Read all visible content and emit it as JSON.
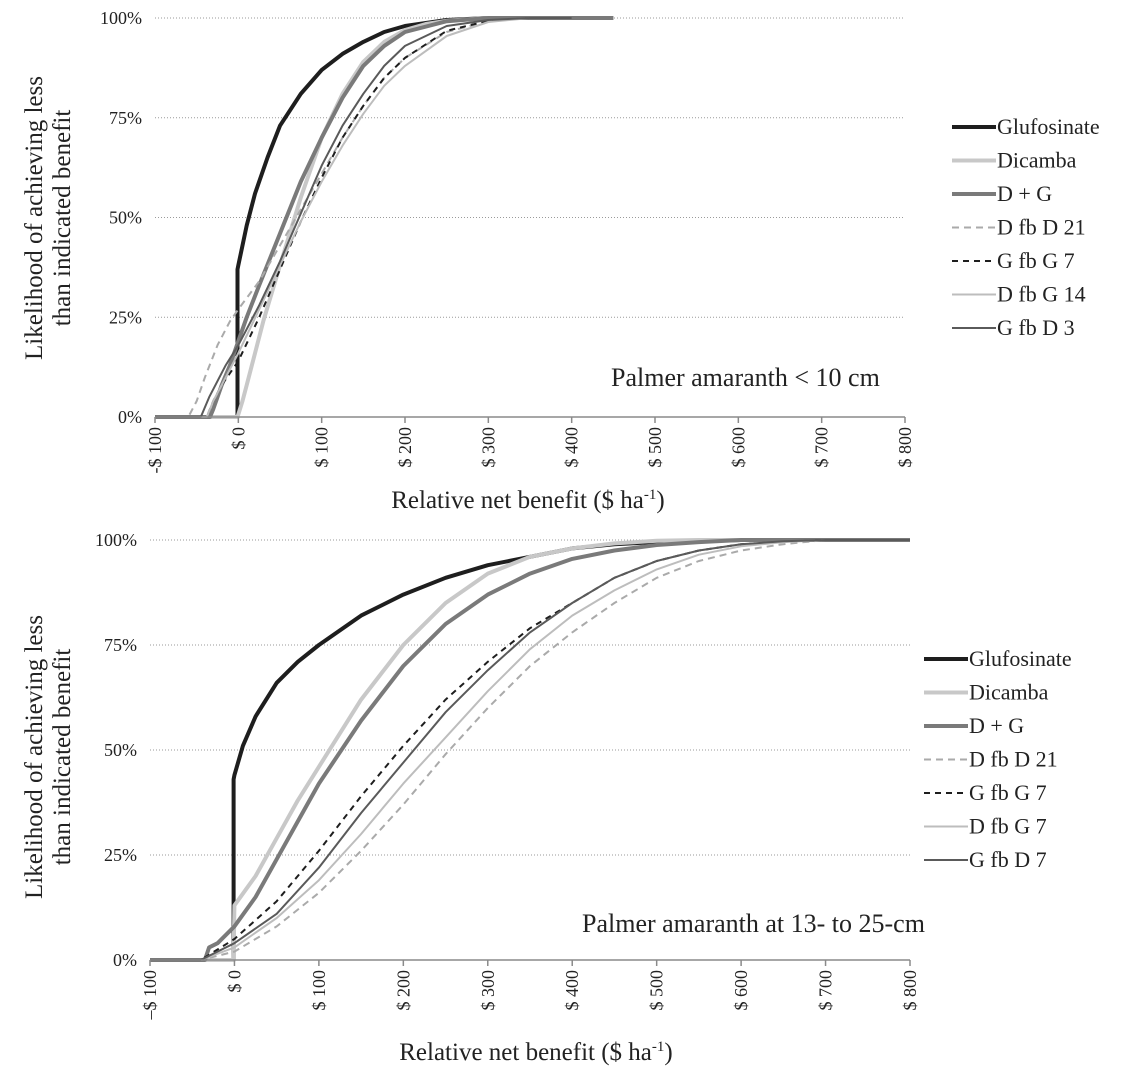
{
  "chart_data": [
    {
      "type": "line",
      "xlabel": "Relative net benefit ($ ha",
      "xlabel_sup": "-1",
      "xlabel_end": ")",
      "ylabel_line1": "Likelihood of achieving less",
      "ylabel_line2": "than indicated benefit",
      "xlim": [
        -100,
        800
      ],
      "ylim": [
        0,
        100
      ],
      "xtick_values": [
        -100,
        0,
        100,
        200,
        300,
        400,
        500,
        600,
        700,
        800
      ],
      "xtick_labels": [
        "-$ 100",
        "$ 0",
        "$ 100",
        "$ 200",
        "$ 300",
        "$ 400",
        "$ 500",
        "$ 600",
        "$ 700",
        "$ 800"
      ],
      "ytick_values": [
        0,
        25,
        50,
        75,
        100
      ],
      "ytick_labels": [
        "0%",
        "25%",
        "50%",
        "75%",
        "100%"
      ],
      "grid": "horizontal dotted",
      "legend_position": "right",
      "annotation": "Palmer amaranth < 10 cm",
      "series": [
        {
          "name": "Glufosinate",
          "color": "#1e1e1e",
          "width": 4,
          "dash": "",
          "x": [
            -100,
            -1,
            -1,
            0,
            10,
            20,
            35,
            50,
            75,
            100,
            125,
            150,
            175,
            200,
            250,
            300,
            350,
            400,
            450
          ],
          "y": [
            0,
            0,
            37,
            38,
            48,
            56,
            65,
            73,
            81,
            87,
            91,
            94,
            96.5,
            98,
            99.5,
            100,
            100,
            100,
            100
          ]
        },
        {
          "name": "Dicamba",
          "color": "#c8c8c8",
          "width": 4,
          "dash": "",
          "x": [
            -100,
            -1,
            5,
            10,
            20,
            30,
            50,
            75,
            100,
            125,
            150,
            175,
            200,
            225,
            250,
            300,
            350,
            400,
            450
          ],
          "y": [
            0,
            0,
            4,
            8,
            16,
            24,
            38,
            55,
            70,
            81,
            89,
            94,
            97,
            98.5,
            99.3,
            100,
            100,
            100,
            100
          ]
        },
        {
          "name": "D + G",
          "color": "#7a7a7a",
          "width": 4,
          "dash": "",
          "x": [
            -100,
            -34,
            -30,
            -20,
            -10,
            0,
            10,
            25,
            50,
            75,
            100,
            125,
            150,
            175,
            200,
            250,
            300,
            350,
            400,
            450
          ],
          "y": [
            0,
            0,
            2,
            8,
            13,
            19,
            25,
            33,
            46,
            59,
            70,
            80,
            88,
            93,
            96.5,
            99.2,
            100,
            100,
            100,
            100
          ]
        },
        {
          "name": "D fb D 21",
          "color": "#aaaaaa",
          "width": 2,
          "dash": "7,5",
          "x": [
            -100,
            -60,
            -50,
            -40,
            -25,
            -10,
            0,
            25,
            50,
            75,
            100,
            125,
            150,
            175,
            200,
            250,
            300,
            350,
            400
          ],
          "y": [
            0,
            0,
            4,
            10,
            18,
            24,
            27,
            34,
            43,
            52,
            61,
            70,
            78,
            85,
            90,
            96.5,
            99.2,
            100,
            100
          ]
        },
        {
          "name": "G fb G 7",
          "color": "#1e1e1e",
          "width": 2,
          "dash": "6,5",
          "x": [
            -100,
            -38,
            -30,
            -20,
            -10,
            0,
            25,
            50,
            75,
            100,
            125,
            150,
            175,
            200,
            250,
            300,
            350,
            400
          ],
          "y": [
            0,
            0,
            4,
            8,
            11,
            14,
            25,
            37,
            49,
            60,
            70,
            78,
            85,
            90,
            96.8,
            99.3,
            100,
            100
          ]
        },
        {
          "name": "D fb G 14",
          "color": "#bdbdbd",
          "width": 2,
          "dash": "",
          "x": [
            -100,
            -38,
            -30,
            -20,
            -10,
            0,
            25,
            50,
            75,
            100,
            125,
            150,
            175,
            200,
            250,
            300,
            350,
            400
          ],
          "y": [
            0,
            0,
            4,
            8,
            12,
            16,
            27,
            38,
            49,
            59,
            68,
            76,
            83,
            88,
            95.5,
            99,
            100,
            100
          ]
        },
        {
          "name": "G fb D 3",
          "color": "#5a5a5a",
          "width": 2,
          "dash": "",
          "x": [
            -100,
            -45,
            -35,
            -25,
            -15,
            0,
            25,
            50,
            75,
            100,
            125,
            150,
            175,
            200,
            250,
            300,
            350,
            400
          ],
          "y": [
            0,
            0,
            5,
            9,
            13,
            18,
            28,
            39,
            51,
            63,
            73,
            81,
            88,
            93,
            98,
            99.5,
            100,
            100
          ]
        }
      ]
    },
    {
      "type": "line",
      "xlabel": "Relative net benefit ($ ha",
      "xlabel_sup": "-1",
      "xlabel_end": ")",
      "ylabel_line1": "Likelihood of achieving less",
      "ylabel_line2": "than indicated benefit",
      "xlim": [
        -100,
        800
      ],
      "ylim": [
        0,
        100
      ],
      "xtick_values": [
        -100,
        0,
        100,
        200,
        300,
        400,
        500,
        600,
        700,
        800
      ],
      "xtick_labels": [
        "–$ 100",
        "$ 0",
        "$ 100",
        "$ 200",
        "$ 300",
        "$ 400",
        "$ 500",
        "$ 600",
        "$ 700",
        "$ 800"
      ],
      "ytick_values": [
        0,
        25,
        50,
        75,
        100
      ],
      "ytick_labels": [
        "0%",
        "25%",
        "50%",
        "75%",
        "100%"
      ],
      "grid": "horizontal dotted",
      "legend_position": "right",
      "annotation": "Palmer amaranth at 13- to 25-cm",
      "series": [
        {
          "name": "Glufosinate",
          "color": "#1e1e1e",
          "width": 4,
          "dash": "",
          "x": [
            -100,
            -1,
            -1,
            0,
            10,
            25,
            50,
            75,
            100,
            150,
            200,
            250,
            300,
            350,
            400,
            450,
            500,
            600,
            700,
            800
          ],
          "y": [
            0,
            0,
            43,
            44,
            51,
            58,
            66,
            71,
            75,
            82,
            87,
            91,
            94,
            96,
            98,
            99,
            99.5,
            100,
            100,
            100
          ]
        },
        {
          "name": "Dicamba",
          "color": "#c8c8c8",
          "width": 4,
          "dash": "",
          "x": [
            -100,
            -1,
            0,
            25,
            50,
            75,
            100,
            150,
            200,
            250,
            300,
            350,
            400,
            450,
            500,
            550,
            600,
            700,
            800
          ],
          "y": [
            0,
            0,
            13,
            20,
            29,
            38,
            46,
            62,
            75,
            85,
            92,
            96,
            98,
            99.2,
            99.8,
            100,
            100,
            100,
            100
          ]
        },
        {
          "name": "D + G",
          "color": "#7a7a7a",
          "width": 4,
          "dash": "",
          "x": [
            -100,
            -35,
            -30,
            -20,
            -10,
            0,
            25,
            50,
            75,
            100,
            150,
            200,
            250,
            300,
            350,
            400,
            450,
            500,
            550,
            600,
            700,
            800
          ],
          "y": [
            0,
            0,
            3,
            4,
            6,
            8,
            15,
            24,
            33,
            42,
            57,
            70,
            80,
            87,
            92,
            95.5,
            97.5,
            98.8,
            99.5,
            100,
            100,
            100
          ]
        },
        {
          "name": "D fb D 21",
          "color": "#aaaaaa",
          "width": 2,
          "dash": "7,5",
          "x": [
            -100,
            -40,
            0,
            50,
            100,
            150,
            200,
            250,
            300,
            350,
            400,
            450,
            500,
            550,
            600,
            650,
            700,
            800
          ],
          "y": [
            0,
            0,
            2,
            8,
            16,
            26,
            37,
            49,
            60,
            70,
            78,
            85,
            91,
            95,
            97.5,
            99,
            100,
            100
          ]
        },
        {
          "name": "G fb G 7",
          "color": "#1e1e1e",
          "width": 2,
          "dash": "6,5",
          "x": [
            -100,
            -40,
            0,
            50,
            100,
            150,
            200,
            250,
            300,
            350,
            400,
            450,
            500,
            550,
            600,
            650,
            700,
            800
          ],
          "y": [
            0,
            0,
            5,
            14,
            26,
            39,
            51,
            62,
            71,
            79,
            85,
            91,
            95,
            97.5,
            99,
            99.6,
            100,
            100
          ]
        },
        {
          "name": "D fb G 7",
          "color": "#bdbdbd",
          "width": 2,
          "dash": "",
          "x": [
            -100,
            -40,
            0,
            50,
            100,
            150,
            200,
            250,
            300,
            350,
            400,
            450,
            500,
            550,
            600,
            650,
            700,
            800
          ],
          "y": [
            0,
            0,
            3,
            10,
            19,
            30,
            42,
            53,
            64,
            74,
            82,
            88,
            93,
            96.5,
            98.5,
            99.5,
            100,
            100
          ]
        },
        {
          "name": "G fb D 7",
          "color": "#5a5a5a",
          "width": 2,
          "dash": "",
          "x": [
            -100,
            -40,
            0,
            50,
            100,
            150,
            200,
            250,
            300,
            350,
            400,
            450,
            500,
            550,
            600,
            650,
            700,
            800
          ],
          "y": [
            0,
            0,
            4,
            11,
            22,
            35,
            47,
            59,
            69,
            78,
            85,
            91,
            95,
            97.5,
            99,
            99.7,
            100,
            100
          ]
        }
      ]
    }
  ]
}
